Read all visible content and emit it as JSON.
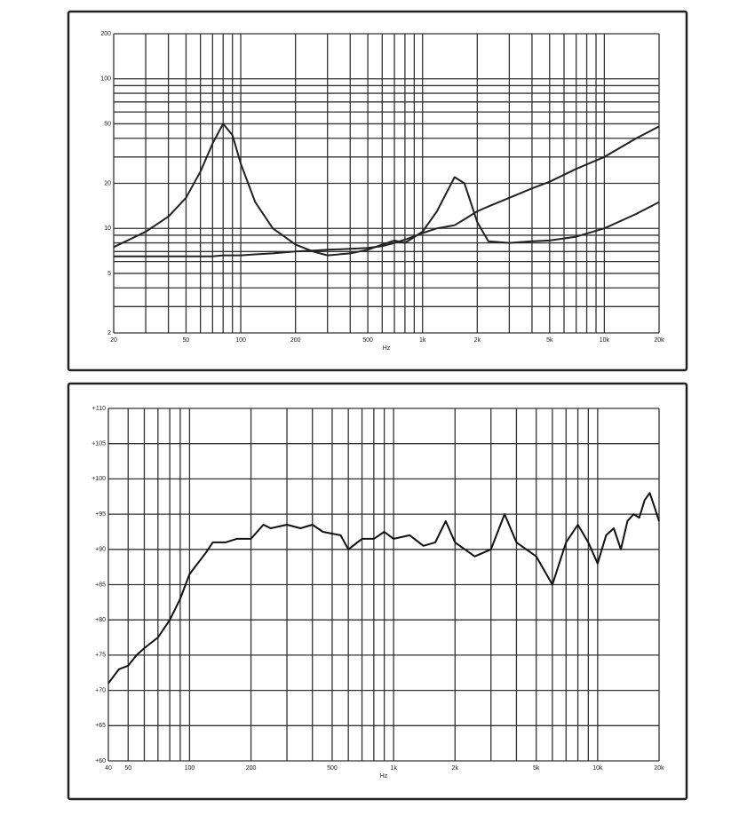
{
  "chart_data": [
    {
      "type": "line",
      "x_label": "Hz",
      "xlog": true,
      "ylog": true,
      "grid": true,
      "xlim": [
        20,
        20000
      ],
      "ylim": [
        2,
        200
      ],
      "xticks": [
        20,
        50,
        100,
        200,
        500,
        {
          "value": 1000,
          "label": "1k"
        },
        {
          "value": 2000,
          "label": "2k"
        },
        {
          "value": 5000,
          "label": "5k"
        },
        {
          "value": 10000,
          "label": "10k"
        },
        {
          "value": 20000,
          "label": "20k"
        }
      ],
      "minor_xticks": [
        30,
        40,
        60,
        70,
        80,
        90,
        300,
        400,
        600,
        700,
        800,
        900,
        3000,
        4000,
        6000,
        7000,
        8000,
        9000
      ],
      "yticks": [
        2,
        5,
        10,
        20,
        50,
        100,
        200
      ],
      "minor_yticks": [
        3,
        4,
        6,
        7,
        8,
        9,
        30,
        40,
        60,
        70,
        80,
        90
      ],
      "x": [
        20,
        30,
        40,
        50,
        60,
        70,
        80,
        90,
        100,
        120,
        150,
        200,
        250,
        300,
        400,
        500,
        600,
        700,
        800,
        1000,
        1200,
        1500,
        1700,
        2000,
        2300,
        3000,
        4000,
        5000,
        7000,
        10000,
        15000,
        20000
      ],
      "series": [
        {
          "color": "#222222",
          "values": [
            7.5,
            9.5,
            12,
            16,
            24,
            37,
            50,
            42,
            27,
            15,
            10,
            7.8,
            7,
            6.6,
            6.8,
            7.2,
            7.8,
            8.3,
            8,
            9.5,
            13,
            22,
            20,
            11,
            8.2,
            8,
            8.2,
            8.3,
            8.8,
            10,
            12.5,
            15
          ]
        },
        {
          "color": "#222222",
          "values": [
            6.5,
            6.5,
            6.5,
            6.5,
            6.5,
            6.5,
            6.6,
            6.6,
            6.6,
            6.7,
            6.8,
            7,
            7.1,
            7.2,
            7.3,
            7.4,
            7.6,
            8,
            8.4,
            9.3,
            10,
            10.5,
            11.5,
            13,
            14,
            16,
            18.5,
            20.5,
            25,
            30,
            40,
            48
          ]
        }
      ]
    },
    {
      "type": "line",
      "x_label": "Hz",
      "xlog": true,
      "ylog": false,
      "grid": true,
      "xlim": [
        40,
        20000
      ],
      "ylim": [
        60,
        110
      ],
      "xticks": [
        40,
        50,
        100,
        200,
        500,
        {
          "value": 1000,
          "label": "1k"
        },
        {
          "value": 2000,
          "label": "2k"
        },
        {
          "value": 5000,
          "label": "5k"
        },
        {
          "value": 10000,
          "label": "10k"
        },
        {
          "value": 20000,
          "label": "20k"
        }
      ],
      "minor_xticks": [
        60,
        70,
        80,
        90,
        300,
        400,
        600,
        700,
        800,
        900,
        3000,
        4000,
        6000,
        7000,
        8000,
        9000
      ],
      "yticks": [
        {
          "value": 60,
          "label": "+60"
        },
        {
          "value": 65,
          "label": "+65"
        },
        {
          "value": 70,
          "label": "+70"
        },
        {
          "value": 75,
          "label": "+75"
        },
        {
          "value": 80,
          "label": "+80"
        },
        {
          "value": 85,
          "label": "+85"
        },
        {
          "value": 90,
          "label": "+90"
        },
        {
          "value": 95,
          "label": "+95"
        },
        {
          "value": 100,
          "label": "+100"
        },
        {
          "value": 105,
          "label": "+105"
        },
        {
          "value": 110,
          "label": "+110"
        }
      ],
      "minor_yticks": [],
      "x": [
        40,
        45,
        50,
        55,
        60,
        70,
        80,
        90,
        100,
        120,
        130,
        150,
        170,
        200,
        230,
        250,
        300,
        350,
        400,
        450,
        550,
        600,
        700,
        800,
        900,
        1000,
        1200,
        1400,
        1600,
        1800,
        2000,
        2500,
        3000,
        3500,
        4000,
        5000,
        6000,
        7000,
        8000,
        9000,
        10000,
        11000,
        12000,
        13000,
        14000,
        15000,
        16000,
        17000,
        18000,
        19000,
        20000
      ],
      "series": [
        {
          "color": "#111111",
          "values": [
            71,
            73,
            73.5,
            75,
            76,
            77.5,
            80,
            83,
            86.5,
            89.5,
            91,
            91,
            91.5,
            91.5,
            93.5,
            93,
            93.5,
            93,
            93.5,
            92.5,
            92,
            90,
            91.5,
            91.5,
            92.5,
            91.5,
            92,
            90.5,
            91,
            94,
            91,
            89,
            90,
            95,
            91,
            89,
            85,
            91,
            93.5,
            91,
            88,
            92,
            93,
            90,
            94,
            95,
            94.5,
            97,
            98,
            96,
            94
          ]
        }
      ]
    }
  ]
}
